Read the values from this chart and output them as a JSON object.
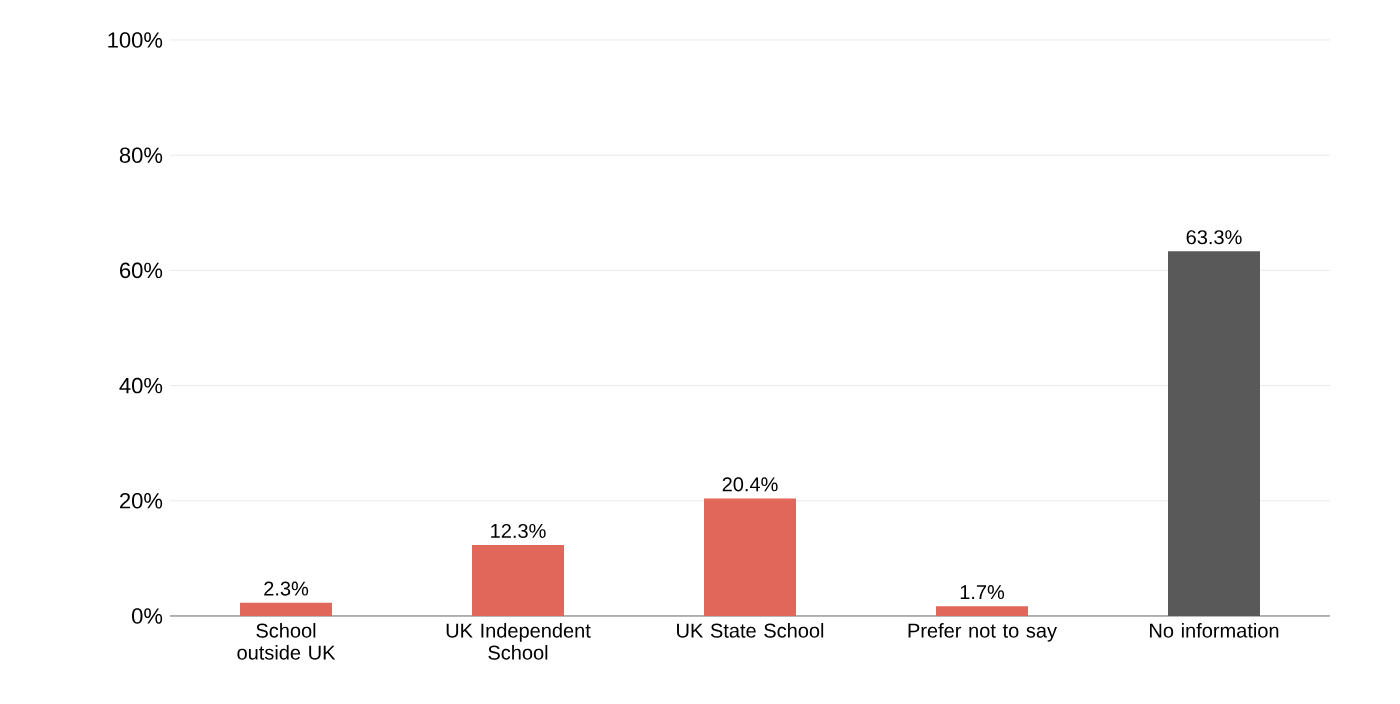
{
  "chart_data": {
    "type": "bar",
    "categories": [
      "School outside UK",
      "UK Independent School",
      "UK State School",
      "Prefer not to say",
      "No information"
    ],
    "values": [
      2.3,
      12.3,
      20.4,
      1.7,
      63.3
    ],
    "colors": [
      "#e0675a",
      "#e0675a",
      "#e0675a",
      "#e0675a",
      "#595959"
    ],
    "value_labels": [
      "2.3%",
      "12.3%",
      "20.4%",
      "1.7%",
      "63.3%"
    ],
    "ylim": [
      0,
      100
    ],
    "yticks": [
      {
        "value": 0,
        "label": "0%"
      },
      {
        "value": 20,
        "label": "20%"
      },
      {
        "value": 40,
        "label": "40%"
      },
      {
        "value": 60,
        "label": "60%"
      },
      {
        "value": 80,
        "label": "80%"
      },
      {
        "value": 100,
        "label": "100%"
      }
    ],
    "grid": "y"
  }
}
